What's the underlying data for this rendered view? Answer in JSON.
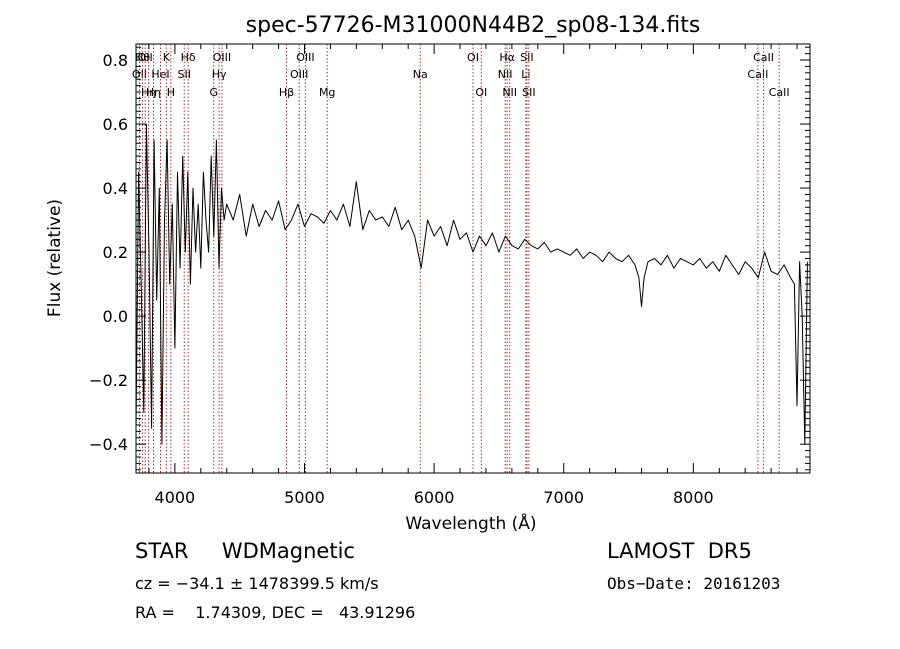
{
  "chart_data": {
    "type": "line",
    "title": "spec-57726-M31000N44B2_sp08-134.fits",
    "xlabel": "Wavelength (Å)",
    "ylabel": "Flux (relative)",
    "xlim": [
      3700,
      8900
    ],
    "ylim": [
      -0.49,
      0.85
    ],
    "xticks": [
      4000,
      5000,
      6000,
      7000,
      8000
    ],
    "xtick_labels": [
      "4000",
      "5000",
      "6000",
      "7000",
      "8000"
    ],
    "yticks": [
      -0.4,
      -0.2,
      0.0,
      0.2,
      0.4,
      0.6,
      0.8
    ],
    "ytick_labels": [
      "−0.4",
      "−0.2",
      "0.0",
      "0.2",
      "0.4",
      "0.6",
      "0.8"
    ],
    "line_color": "#000000",
    "marker_color": "#a03030",
    "grid": false,
    "markers": [
      {
        "wl": 3727,
        "label": "OII",
        "row": 2
      },
      {
        "wl": 3751,
        "label": "Hθ",
        "row": 1
      },
      {
        "wl": 3771,
        "label": "OII",
        "row": 1
      },
      {
        "wl": 3797,
        "label": "Hη",
        "row": 3
      },
      {
        "wl": 3835,
        "label": "Hη",
        "row": 3
      },
      {
        "wl": 3889,
        "label": "HeI",
        "row": 2
      },
      {
        "wl": 3934,
        "label": "K",
        "row": 1
      },
      {
        "wl": 3969,
        "label": "H",
        "row": 3
      },
      {
        "wl": 4072,
        "label": "SII",
        "row": 2
      },
      {
        "wl": 4102,
        "label": "Hδ",
        "row": 1
      },
      {
        "wl": 4300,
        "label": "G",
        "row": 3
      },
      {
        "wl": 4341,
        "label": "Hγ",
        "row": 2
      },
      {
        "wl": 4363,
        "label": "OIII",
        "row": 1
      },
      {
        "wl": 4861,
        "label": "Hβ",
        "row": 3
      },
      {
        "wl": 4959,
        "label": "OIII",
        "row": 2
      },
      {
        "wl": 5007,
        "label": "OIII",
        "row": 1
      },
      {
        "wl": 5175,
        "label": "Mg",
        "row": 3
      },
      {
        "wl": 5893,
        "label": "Na",
        "row": 2
      },
      {
        "wl": 6300,
        "label": "OI",
        "row": 1
      },
      {
        "wl": 6364,
        "label": "OI",
        "row": 3
      },
      {
        "wl": 6548,
        "label": "NII",
        "row": 2
      },
      {
        "wl": 6563,
        "label": "Hα",
        "row": 1
      },
      {
        "wl": 6583,
        "label": "NII",
        "row": 3
      },
      {
        "wl": 6708,
        "label": "Li",
        "row": 2
      },
      {
        "wl": 6716,
        "label": "SII",
        "row": 1
      },
      {
        "wl": 6731,
        "label": "SII",
        "row": 3
      },
      {
        "wl": 8498,
        "label": "CaII",
        "row": 2
      },
      {
        "wl": 8542,
        "label": "CaII",
        "row": 1
      },
      {
        "wl": 8662,
        "label": "CaII",
        "row": 3
      }
    ],
    "series": [
      {
        "x": [
          3700,
          3720,
          3740,
          3760,
          3780,
          3800,
          3820,
          3840,
          3860,
          3880,
          3900,
          3920,
          3940,
          3960,
          3980,
          4000,
          4020,
          4040,
          4060,
          4080,
          4100,
          4120,
          4140,
          4160,
          4180,
          4200,
          4220,
          4240,
          4260,
          4280,
          4300,
          4320,
          4340,
          4360,
          4380,
          4400,
          4450,
          4500,
          4550,
          4600,
          4650,
          4700,
          4750,
          4800,
          4850,
          4900,
          4950,
          5000,
          5050,
          5100,
          5150,
          5200,
          5250,
          5300,
          5350,
          5400,
          5450,
          5500,
          5550,
          5600,
          5650,
          5700,
          5750,
          5800,
          5850,
          5900,
          5950,
          6000,
          6050,
          6100,
          6150,
          6200,
          6250,
          6300,
          6350,
          6400,
          6450,
          6500,
          6550,
          6600,
          6650,
          6700,
          6750,
          6800,
          6850,
          6900,
          6950,
          7000,
          7050,
          7100,
          7150,
          7200,
          7250,
          7300,
          7350,
          7400,
          7450,
          7500,
          7550,
          7580,
          7600,
          7620,
          7650,
          7700,
          7750,
          7800,
          7850,
          7900,
          7950,
          8000,
          8050,
          8100,
          8150,
          8200,
          8250,
          8300,
          8350,
          8400,
          8450,
          8500,
          8550,
          8600,
          8650,
          8700,
          8750,
          8780,
          8800,
          8820,
          8840,
          8860,
          8880
        ],
        "y": [
          -0.35,
          0.45,
          0.1,
          -0.3,
          0.6,
          0.2,
          -0.35,
          0.55,
          0.05,
          0.4,
          -0.4,
          0.3,
          0.55,
          0.1,
          0.35,
          -0.1,
          0.45,
          0.15,
          0.5,
          0.2,
          0.45,
          0.1,
          0.4,
          0.2,
          0.35,
          0.15,
          0.45,
          0.3,
          0.2,
          0.5,
          0.25,
          0.55,
          0.15,
          0.4,
          0.3,
          0.35,
          0.3,
          0.38,
          0.25,
          0.35,
          0.28,
          0.33,
          0.3,
          0.36,
          0.27,
          0.3,
          0.35,
          0.28,
          0.32,
          0.31,
          0.29,
          0.33,
          0.3,
          0.35,
          0.28,
          0.42,
          0.27,
          0.33,
          0.3,
          0.31,
          0.28,
          0.34,
          0.27,
          0.3,
          0.25,
          0.15,
          0.3,
          0.25,
          0.28,
          0.22,
          0.3,
          0.24,
          0.26,
          0.2,
          0.25,
          0.22,
          0.26,
          0.2,
          0.25,
          0.22,
          0.21,
          0.24,
          0.22,
          0.21,
          0.23,
          0.2,
          0.21,
          0.2,
          0.19,
          0.21,
          0.18,
          0.2,
          0.19,
          0.17,
          0.2,
          0.18,
          0.17,
          0.19,
          0.16,
          0.12,
          0.03,
          0.12,
          0.17,
          0.18,
          0.16,
          0.19,
          0.15,
          0.18,
          0.17,
          0.16,
          0.18,
          0.15,
          0.17,
          0.14,
          0.19,
          0.16,
          0.13,
          0.17,
          0.15,
          0.12,
          0.2,
          0.14,
          0.13,
          0.16,
          0.12,
          0.1,
          -0.28,
          0.17,
          0.0,
          -0.4,
          0.17
        ]
      }
    ]
  },
  "info": {
    "left_line1": "STAR     WDMagnetic",
    "left_line2": "cz = −34.1 ± 1478399.5 km/s",
    "left_line3": "RA =    1.74309, DEC =   43.91296",
    "right_line1": "LAMOST  DR5",
    "right_line2": "Obs−Date: 20161203"
  }
}
